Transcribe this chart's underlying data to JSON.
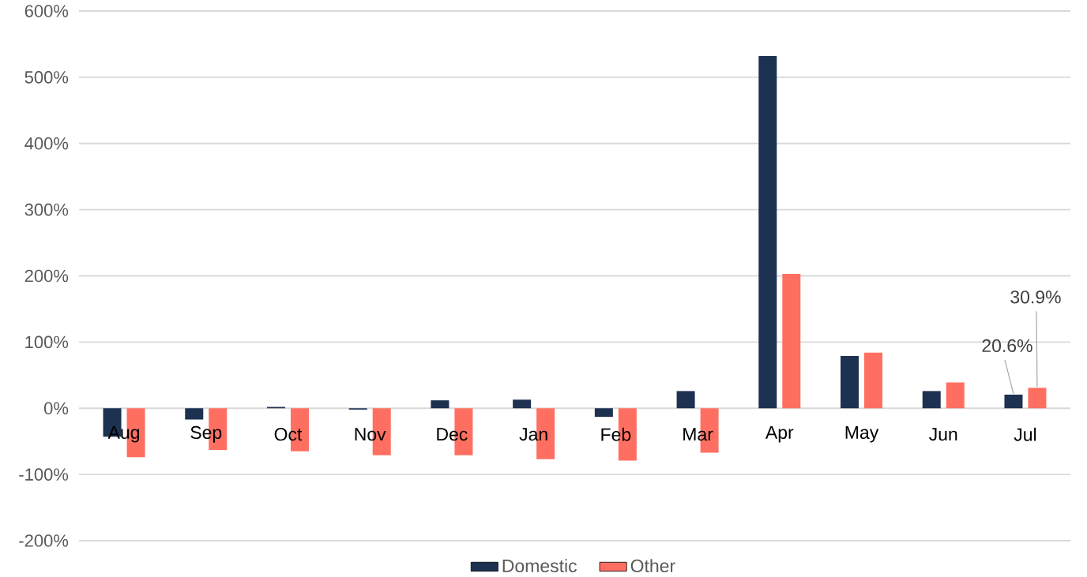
{
  "chart_data": {
    "type": "bar",
    "categories": [
      "Aug",
      "Sep",
      "Oct",
      "Nov",
      "Dec",
      "Jan",
      "Feb",
      "Mar",
      "Apr",
      "May",
      "Jun",
      "Jul"
    ],
    "series": [
      {
        "name": "Domestic",
        "color": "#1d3150",
        "values": [
          -43,
          -17,
          2,
          -2,
          12,
          13,
          -13,
          26,
          532,
          79,
          26,
          20.6
        ],
        "value_labels": [
          null,
          null,
          null,
          null,
          null,
          null,
          null,
          null,
          null,
          null,
          null,
          "20.6%"
        ]
      },
      {
        "name": "Other",
        "color": "#ff6f61",
        "values": [
          -74,
          -63,
          -65,
          -71,
          -71,
          -77,
          -79,
          -67,
          203,
          84,
          39,
          30.9
        ],
        "value_labels": [
          null,
          null,
          null,
          null,
          null,
          null,
          null,
          null,
          null,
          null,
          null,
          "30.9%"
        ]
      }
    ],
    "ylim": [
      -200,
      600
    ],
    "yticks": [
      {
        "value": -200,
        "label": "-200%"
      },
      {
        "value": -100,
        "label": "-100%"
      },
      {
        "value": 0,
        "label": "0%"
      },
      {
        "value": 100,
        "label": "100%"
      },
      {
        "value": 200,
        "label": "200%"
      },
      {
        "value": 300,
        "label": "300%"
      },
      {
        "value": 400,
        "label": "400%"
      },
      {
        "value": 500,
        "label": "500%"
      },
      {
        "value": 600,
        "label": "600%"
      }
    ],
    "grid": "y",
    "legend": "bottom"
  }
}
